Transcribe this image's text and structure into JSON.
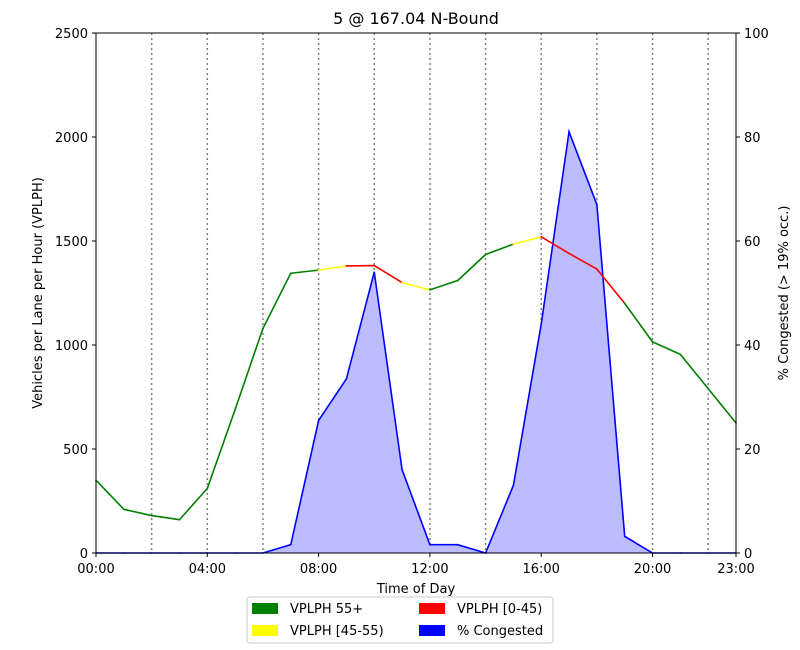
{
  "chart_data": {
    "type": "line",
    "title": "5 @ 167.04 N-Bound",
    "xlabel": "Time of Day",
    "ylabel": "Vehicles per Lane per Hour (VPLPH)",
    "y2label": "% Congested (> 19% occ.)",
    "xlim": [
      0,
      23
    ],
    "ylim": [
      0,
      2500
    ],
    "y2lim": [
      0,
      100
    ],
    "x_ticks": [
      0,
      4,
      8,
      12,
      16,
      20,
      23
    ],
    "x_tick_labels": [
      "00:00",
      "04:00",
      "08:00",
      "12:00",
      "16:00",
      "20:00",
      "23:00"
    ],
    "y_ticks": [
      0,
      500,
      1000,
      1500,
      2000,
      2500
    ],
    "y_tick_labels": [
      "0",
      "500",
      "1000",
      "1500",
      "2000",
      "2500"
    ],
    "y2_ticks": [
      0,
      20,
      40,
      60,
      80,
      100
    ],
    "y2_tick_labels": [
      "0",
      "20",
      "40",
      "60",
      "80",
      "100"
    ],
    "vertical_gridlines_at_hours": [
      2,
      4,
      6,
      8,
      10,
      12,
      14,
      16,
      18,
      20,
      22
    ],
    "legend_position": "bottom-center",
    "colors": {
      "vplph_55plus": "#008000",
      "vplph_45_55": "#ffff00",
      "vplph_0_45": "#ff0000",
      "congested_line": "#0000ff",
      "congested_fill": "#bcbcff",
      "gridline": "#808080"
    },
    "series": [
      {
        "name": "VPLPH",
        "hours": [
          0,
          1,
          2,
          3,
          4,
          5,
          6,
          7,
          8,
          9,
          10,
          11,
          12,
          13,
          14,
          15,
          16,
          17,
          18,
          19,
          20,
          21,
          22,
          23
        ],
        "values": [
          350,
          210,
          180,
          160,
          310,
          690,
          1080,
          1345,
          1360,
          1380,
          1382,
          1300,
          1265,
          1310,
          1435,
          1485,
          1520,
          1440,
          1365,
          1200,
          1015,
          955,
          790,
          625
        ],
        "speed_band_segments": [
          "55+",
          "55+",
          "55+",
          "55+",
          "55+",
          "55+",
          "55+",
          "55+",
          "45-55",
          "0-45",
          "0-45",
          "45-55",
          "55+",
          "55+",
          "55+",
          "45-55",
          "0-45",
          "0-45",
          "0-45",
          "55+",
          "55+",
          "55+",
          "55+"
        ]
      },
      {
        "name": "% Congested",
        "hours": [
          0,
          1,
          2,
          3,
          4,
          5,
          6,
          7,
          8,
          9,
          10,
          11,
          12,
          13,
          14,
          15,
          16,
          17,
          18,
          19,
          20,
          21,
          22,
          23
        ],
        "values": [
          0,
          0,
          0,
          0,
          0,
          0,
          0,
          1.6,
          25.5,
          33.5,
          54,
          16,
          1.6,
          1.6,
          0,
          13,
          44,
          81,
          67,
          3.2,
          0,
          0,
          0,
          0
        ],
        "axis": "right"
      }
    ],
    "legend": [
      {
        "label": "VPLPH 55+",
        "color_key": "vplph_55plus"
      },
      {
        "label": "VPLPH [45-55)",
        "color_key": "vplph_45_55"
      },
      {
        "label": "VPLPH [0-45)",
        "color_key": "vplph_0_45"
      },
      {
        "label": "% Congested",
        "color_key": "congested_line"
      }
    ]
  }
}
